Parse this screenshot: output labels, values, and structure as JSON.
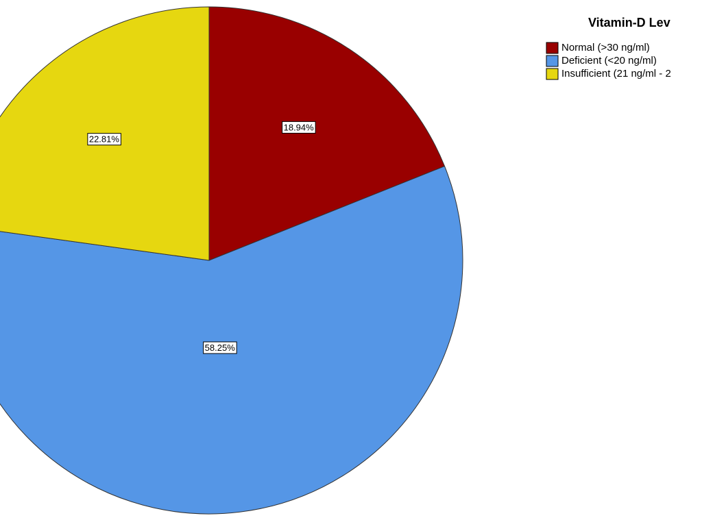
{
  "chart_data": {
    "type": "pie",
    "title": "Vitamin-D Lev",
    "categories": [
      "Normal (>30 ng/ml)",
      "Deficient (<20 ng/ml)",
      "Insufficient (21 ng/ml - 2"
    ],
    "values": [
      18.94,
      58.25,
      22.81
    ],
    "value_labels": [
      "18.94%",
      "58.25%",
      "22.81%"
    ],
    "colors": [
      "#990000",
      "#5596e6",
      "#e6d710"
    ]
  }
}
